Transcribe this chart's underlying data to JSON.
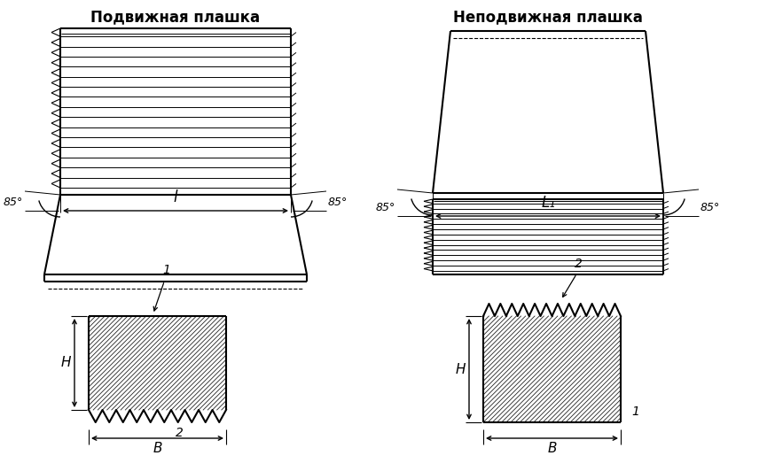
{
  "title_left": "Подвижная плашка",
  "title_right": "Неподвижная плашка",
  "bg_color": "#ffffff",
  "line_color": "#000000",
  "angle_label": "85°",
  "dim_label_left": "l",
  "dim_label_right": "L₁",
  "label_H": "H",
  "label_B": "B",
  "label_1_left": "1",
  "label_2_left": "2",
  "label_1_right": "1",
  "label_2_right": "2"
}
